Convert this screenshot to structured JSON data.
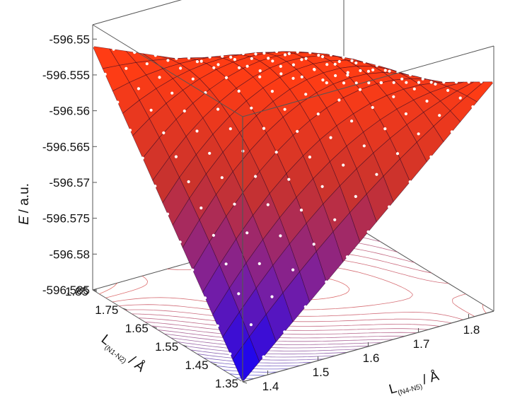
{
  "chart_data": {
    "type": "surface3d",
    "title": "",
    "zlabel": {
      "symbol": "E",
      "unit": "/ a.u."
    },
    "xlabel": {
      "prefix": "L",
      "subscript": "(N4-N5)",
      "unit": "/ Å"
    },
    "ylabel": {
      "prefix": "L",
      "subscript": "(N1-N2)",
      "unit": "/ Å"
    },
    "x_ticks": [
      "1.4",
      "1.5",
      "1.6",
      "1.7",
      "1.8"
    ],
    "y_ticks": [
      "1.35",
      "1.45",
      "1.55",
      "1.65",
      "1.75",
      "1.85"
    ],
    "z_ticks": [
      "-596.55",
      "-596.555",
      "-596.56",
      "-596.565",
      "-596.57",
      "-596.575",
      "-596.58",
      "-596.585"
    ],
    "xlim": [
      1.35,
      1.85
    ],
    "ylim": [
      1.35,
      1.85
    ],
    "zlim": [
      -596.585,
      -596.548
    ],
    "grid_size": 15,
    "corner_values": {
      "x_min_y_min": -596.585,
      "x_max_y_min": -596.553,
      "x_min_y_max": -596.551,
      "x_max_y_max": -596.566,
      "center": -596.554
    },
    "colormap": [
      "#0a00ff",
      "#7a1fa0",
      "#c8322e",
      "#ff3c14"
    ],
    "contour_colors": {
      "low": "#4a4ad8",
      "high": "#e0605a"
    },
    "wireframe_box": true
  }
}
